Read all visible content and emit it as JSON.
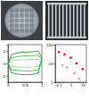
{
  "chart_data": [
    {
      "type": "line",
      "x": [
        0,
        0.1,
        0.3,
        0.5,
        0.7,
        0.9,
        1,
        0.9,
        0.7,
        0.5,
        0.3,
        0.1,
        0
      ],
      "series": [
        {
          "color": "#9ad89a",
          "values": [
            0,
            0.4,
            0.55,
            0.6,
            0.62,
            0.65,
            0.3,
            -0.5,
            -0.6,
            -0.6,
            -0.58,
            -0.5,
            0
          ]
        },
        {
          "color": "#4cbf4c",
          "values": [
            0,
            0.9,
            1.1,
            1.2,
            1.25,
            1.3,
            0.6,
            -1.0,
            -1.2,
            -1.2,
            -1.15,
            -1.0,
            0
          ]
        },
        {
          "color": "#1a9a3a",
          "values": [
            0,
            1.4,
            1.7,
            1.8,
            1.85,
            1.95,
            0.9,
            -1.5,
            -1.8,
            -1.8,
            -1.75,
            -1.5,
            0
          ]
        }
      ],
      "xlim": [
        0,
        1
      ],
      "xticks": [
        0,
        0.5,
        1
      ],
      "ylim": [
        -3,
        3
      ],
      "yticks": [
        -2,
        0,
        2
      ]
    },
    {
      "type": "scatter",
      "log": true,
      "series": [
        {
          "color": "#d62728",
          "marker": "circle",
          "x": [
            0.1,
            0.3,
            1,
            3,
            10
          ],
          "values": [
            40,
            30,
            20,
            10,
            5
          ]
        },
        {
          "color": "#f29bb0",
          "marker": "circle",
          "x": [
            0.2,
            0.5,
            2,
            5
          ],
          "values": [
            8,
            6,
            3,
            1.5
          ]
        }
      ],
      "xlim": [
        0.05,
        20
      ],
      "xticks": [
        0.1,
        1,
        10
      ],
      "ylim": [
        1,
        100
      ],
      "yticks": [
        1,
        10,
        100
      ]
    }
  ]
}
